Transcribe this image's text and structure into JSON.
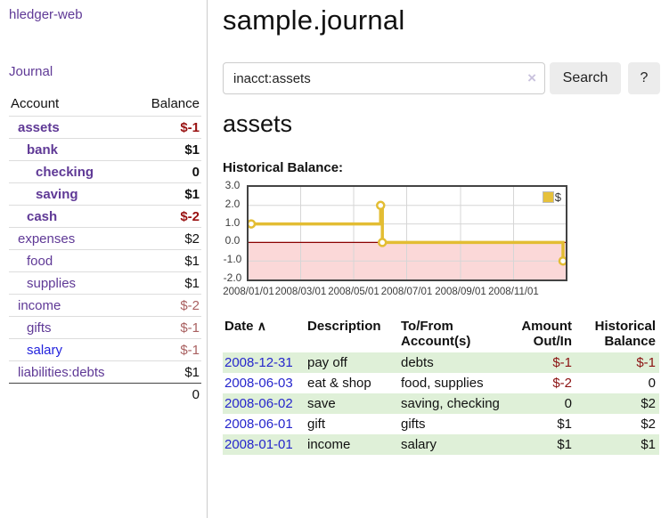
{
  "app": {
    "brand": "hledger-web",
    "nav_journal": "Journal"
  },
  "sidebar": {
    "headers": {
      "account": "Account",
      "balance": "Balance"
    },
    "accounts": [
      {
        "name": "assets",
        "balance": "$-1",
        "indent": 1,
        "bold": true,
        "negative": true
      },
      {
        "name": "bank",
        "balance": "$1",
        "indent": 2,
        "bold": true,
        "negative": false
      },
      {
        "name": "checking",
        "balance": "0",
        "indent": 3,
        "bold": true,
        "negative": false
      },
      {
        "name": "saving",
        "balance": "$1",
        "indent": 3,
        "bold": true,
        "negative": false
      },
      {
        "name": "cash",
        "balance": "$-2",
        "indent": 2,
        "bold": true,
        "negative": true
      },
      {
        "name": "expenses",
        "balance": "$2",
        "indent": 1,
        "bold": false,
        "negative": false
      },
      {
        "name": "food",
        "balance": "$1",
        "indent": 2,
        "bold": false,
        "negative": false
      },
      {
        "name": "supplies",
        "balance": "$1",
        "indent": 2,
        "bold": false,
        "negative": false
      },
      {
        "name": "income",
        "balance": "$-2",
        "indent": 1,
        "bold": false,
        "negative": true
      },
      {
        "name": "gifts",
        "balance": "$-1",
        "indent": 2,
        "bold": false,
        "negative": true
      },
      {
        "name": "salary",
        "balance": "$-1",
        "indent": 2,
        "bold": false,
        "negative": true,
        "blue": true
      },
      {
        "name": "liabilities:debts",
        "balance": "$1",
        "indent": 1,
        "bold": false,
        "negative": false
      }
    ],
    "total": "0"
  },
  "header": {
    "title": "sample.journal"
  },
  "search": {
    "value": "inacct:assets",
    "clear_icon": "×",
    "search_button": "Search",
    "help_button": "?"
  },
  "account_page": {
    "title": "assets",
    "chart_label": "Historical Balance:"
  },
  "chart_data": {
    "type": "line",
    "step": true,
    "title": "Historical Balance",
    "series": [
      {
        "name": "$",
        "color": "#e3bd33",
        "points": [
          {
            "date": "2008-01-01",
            "value": 1
          },
          {
            "date": "2008-06-01",
            "value": 2
          },
          {
            "date": "2008-06-03",
            "value": 0
          },
          {
            "date": "2008-12-31",
            "value": -1
          }
        ]
      }
    ],
    "xrange": [
      "2008-01-01",
      "2008-12-31"
    ],
    "ylim": [
      -2,
      3
    ],
    "yticks": [
      "3.0",
      "2.0",
      "1.0",
      "0.0",
      "-1.0",
      "-2.0"
    ],
    "xticks": [
      "2008/01/01",
      "2008/03/01",
      "2008/05/01",
      "2008/07/01",
      "2008/09/01",
      "2008/11/01"
    ],
    "legend": "$",
    "legend_position": "top-right",
    "grid": true,
    "negative_region_color": "#fbd8d8",
    "zero_line_color": "#8b0000"
  },
  "register": {
    "columns": [
      {
        "line1": "Date",
        "sort": "∧"
      },
      {
        "line1": "Description"
      },
      {
        "line1": "To/From\nAccount(s)"
      },
      {
        "line1": "Amount\nOut/In"
      },
      {
        "line1": "Historical\nBalance"
      }
    ],
    "rows": [
      {
        "date": "2008-12-31",
        "description": "pay off",
        "accounts": "debts",
        "amount": "$-1",
        "balance": "$-1",
        "amount_neg": true,
        "balance_neg": true
      },
      {
        "date": "2008-06-03",
        "description": "eat & shop",
        "accounts": "food, supplies",
        "amount": "$-2",
        "balance": "0",
        "amount_neg": true,
        "balance_neg": false
      },
      {
        "date": "2008-06-02",
        "description": "save",
        "accounts": "saving, checking",
        "amount": "0",
        "balance": "$2",
        "amount_neg": false,
        "balance_neg": false
      },
      {
        "date": "2008-06-01",
        "description": "gift",
        "accounts": "gifts",
        "amount": "$1",
        "balance": "$2",
        "amount_neg": false,
        "balance_neg": false
      },
      {
        "date": "2008-01-01",
        "description": "income",
        "accounts": "salary",
        "amount": "$1",
        "balance": "$1",
        "amount_neg": false,
        "balance_neg": false
      }
    ]
  }
}
